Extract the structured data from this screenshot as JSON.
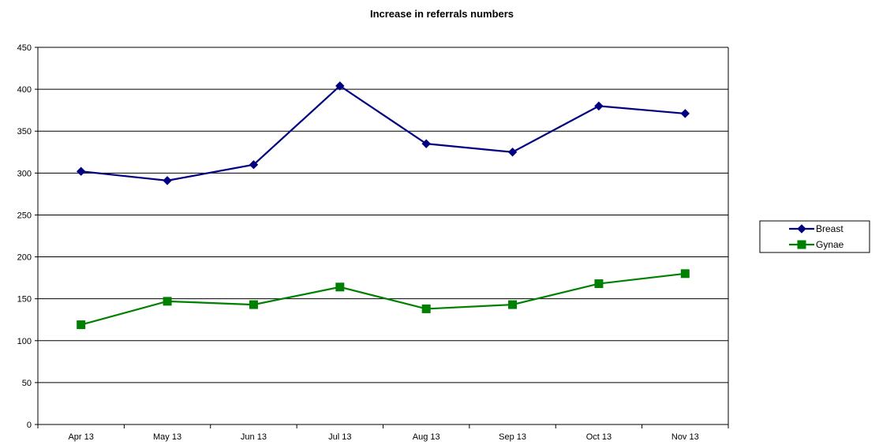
{
  "chart_data": {
    "type": "line",
    "title": "Increase in referrals numbers",
    "xlabel": "",
    "ylabel": "",
    "categories": [
      "Apr 13",
      "May 13",
      "Jun 13",
      "Jul 13",
      "Aug 13",
      "Sep 13",
      "Oct 13",
      "Nov 13"
    ],
    "ylim": [
      0,
      450
    ],
    "yticks": [
      0,
      50,
      100,
      150,
      200,
      250,
      300,
      350,
      400,
      450
    ],
    "grid": "horizontal",
    "legend_position": "right",
    "series": [
      {
        "name": "Breast",
        "color": "#000080",
        "marker": "diamond",
        "values": [
          302,
          291,
          310,
          404,
          335,
          325,
          380,
          371
        ]
      },
      {
        "name": "Gynae",
        "color": "#008000",
        "marker": "square",
        "values": [
          119,
          147,
          143,
          164,
          138,
          143,
          168,
          180
        ]
      }
    ]
  }
}
